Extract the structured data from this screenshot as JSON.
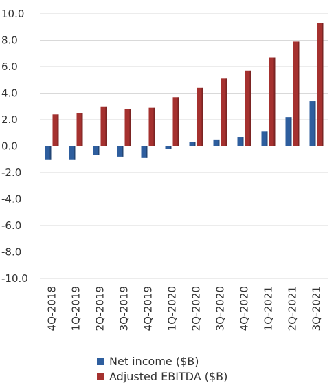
{
  "chart_data": {
    "type": "bar",
    "categories": [
      "4Q-2018",
      "1Q-2019",
      "2Q-2019",
      "3Q-2019",
      "4Q-2019",
      "1Q-2020",
      "2Q-2020",
      "3Q-2020",
      "4Q-2020",
      "1Q-2021",
      "2Q-2021",
      "3Q-2021"
    ],
    "series": [
      {
        "name": "Net income ($B)",
        "color": "#2e5e9e",
        "values": [
          -1.0,
          -1.0,
          -0.7,
          -0.8,
          -0.9,
          -0.2,
          0.3,
          0.5,
          0.7,
          1.1,
          2.2,
          3.4
        ]
      },
      {
        "name": "Adjusted EBITDA ($B)",
        "color": "#a5312f",
        "values": [
          2.4,
          2.5,
          3.0,
          2.8,
          2.9,
          3.7,
          4.4,
          5.1,
          5.7,
          6.7,
          7.9,
          9.3
        ]
      }
    ],
    "yticks": [
      "10.0",
      "8.0",
      "6.0",
      "4.0",
      "2.0",
      "0.0",
      "-2.0",
      "-4.0",
      "-6.0",
      "-8.0",
      "-10.0"
    ],
    "ylim": [
      -10,
      10
    ],
    "grid": true,
    "legend_position": "bottom",
    "title": "",
    "xlabel": "",
    "ylabel": ""
  }
}
